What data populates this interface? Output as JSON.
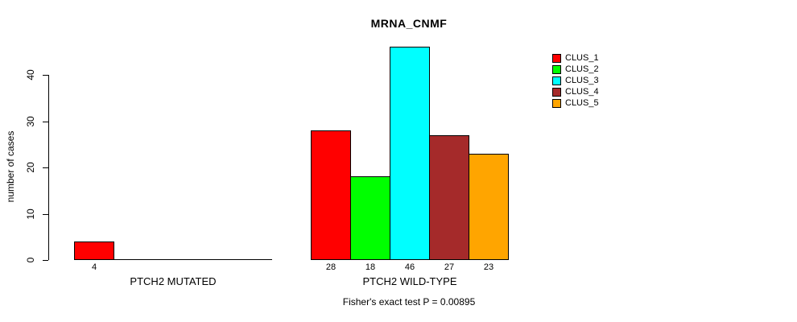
{
  "page": {
    "background": "#ffffff",
    "text_color": "#000000"
  },
  "chart_data": {
    "type": "bar",
    "title": "MRNA_CNMF",
    "xlabel": "",
    "ylabel": "number of cases",
    "footer": "Fisher's exact test P = 0.00895",
    "groups": [
      "PTCH2 MUTATED",
      "PTCH2 WILD-TYPE"
    ],
    "series": [
      {
        "name": "CLUS_1",
        "color": "#FF0000",
        "values": [
          4,
          28
        ]
      },
      {
        "name": "CLUS_2",
        "color": "#00FF00",
        "values": [
          0,
          18
        ]
      },
      {
        "name": "CLUS_3",
        "color": "#00FFFF",
        "values": [
          0,
          46
        ]
      },
      {
        "name": "CLUS_4",
        "color": "#A52A2A",
        "values": [
          0,
          27
        ]
      },
      {
        "name": "CLUS_5",
        "color": "#FFA500",
        "values": [
          0,
          23
        ]
      }
    ],
    "yticks": [
      0,
      10,
      20,
      30,
      40
    ],
    "ylim": [
      0,
      46
    ],
    "grid": false,
    "legend_position": "top-right",
    "bar_border_color": "#000000",
    "axis_color": "#000000"
  }
}
